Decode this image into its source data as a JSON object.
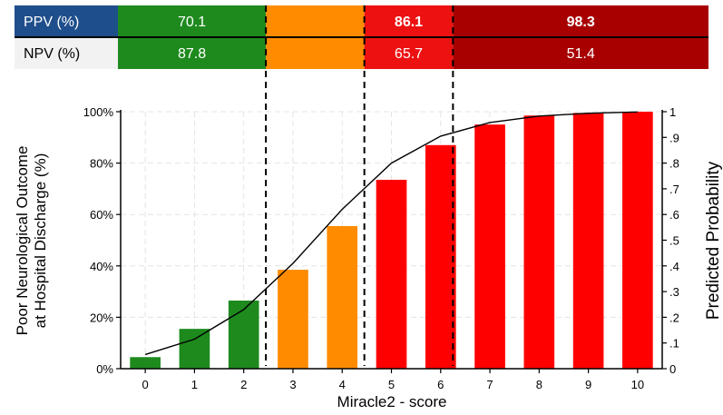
{
  "header_table": {
    "rows": [
      {
        "label": "PPV (%)",
        "values": [
          "70.1",
          "",
          "86.1",
          "98.3"
        ]
      },
      {
        "label": "NPV (%)",
        "values": [
          "87.8",
          "",
          "65.7",
          "51.4"
        ]
      }
    ],
    "segment_colors": [
      "#1e8a1e",
      "#ff8c00",
      "#ee1111",
      "#a80000"
    ],
    "label_colors": [
      "#1f4e8c",
      "#f2f2f2"
    ]
  },
  "chart_data": {
    "type": "bar",
    "title": "",
    "xlabel": "Miracle2 - score",
    "ylabel": "Poor Neurological Outcome\nat Hospital Discharge (%)",
    "y2label": "Predicted Probability",
    "categories": [
      "0",
      "1",
      "2",
      "3",
      "4",
      "5",
      "6",
      "7",
      "8",
      "9",
      "10"
    ],
    "values": [
      4.5,
      15.5,
      26.5,
      38.5,
      55.5,
      73.5,
      87.0,
      95.0,
      98.5,
      99.5,
      100.0
    ],
    "bar_colors": [
      "#1e8a1e",
      "#1e8a1e",
      "#1e8a1e",
      "#ff8c00",
      "#ff8c00",
      "#ff0000",
      "#ff0000",
      "#ff0000",
      "#ff0000",
      "#ff0000",
      "#ff0000"
    ],
    "ylim": [
      0,
      100
    ],
    "yticks": [
      "0%",
      "20%",
      "40%",
      "60%",
      "80%",
      "100%"
    ],
    "y2lim": [
      0,
      1
    ],
    "y2ticks": [
      "0",
      ".1",
      ".2",
      ".3",
      ".4",
      ".5",
      ".6",
      ".7",
      ".8",
      ".9",
      "1"
    ],
    "line": {
      "x": [
        0,
        1,
        2,
        3,
        4,
        5,
        6,
        7,
        8,
        9,
        10
      ],
      "y": [
        0.055,
        0.115,
        0.23,
        0.41,
        0.62,
        0.8,
        0.905,
        0.958,
        0.983,
        0.994,
        0.999
      ]
    },
    "cutoffs": [
      2.45,
      4.45,
      6.25
    ],
    "grid": true
  }
}
